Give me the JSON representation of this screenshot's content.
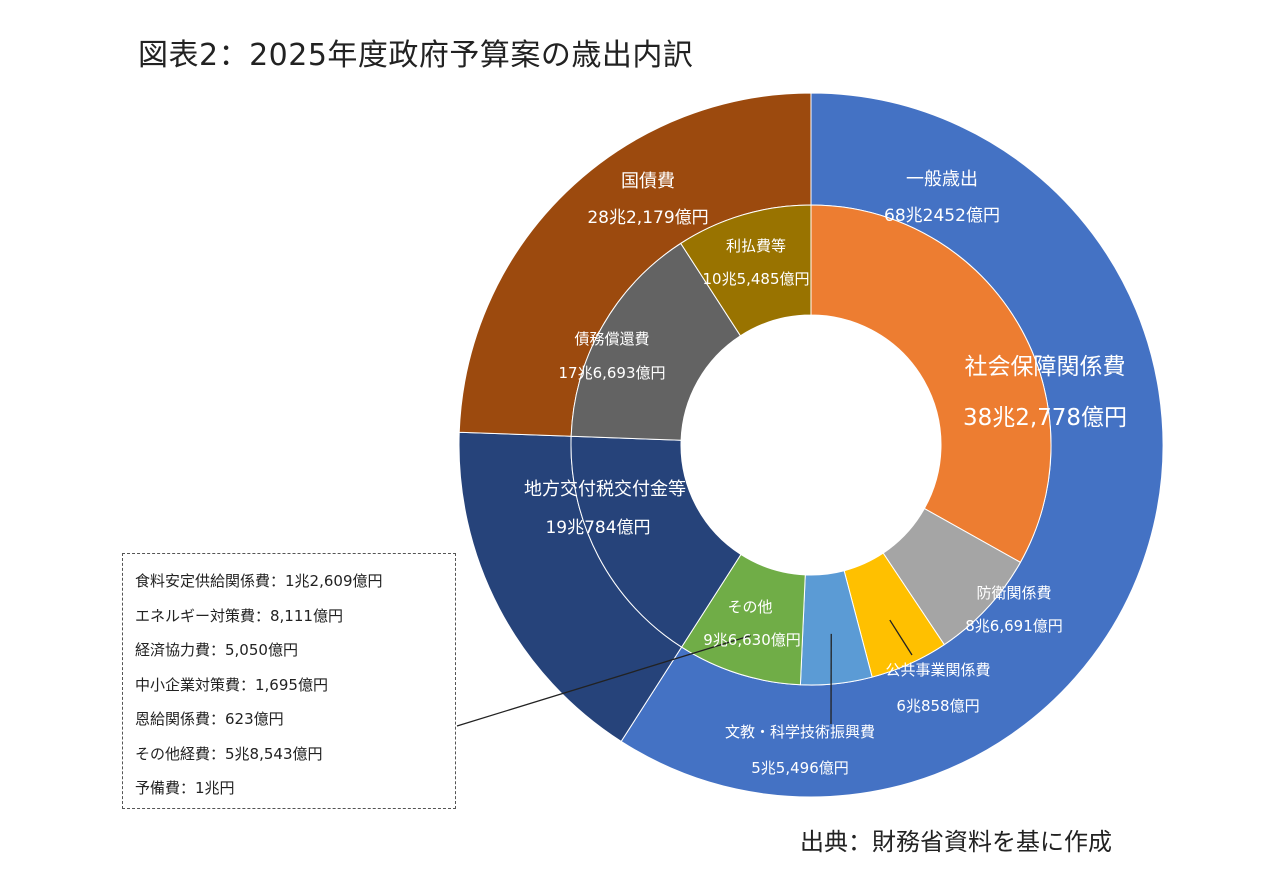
{
  "title": "図表2：2025年度政府予算案の歳出内訳",
  "source": "出典：財務省資料を基に作成",
  "colors": {
    "general": "#4472C4",
    "debt": "#9C4A0E",
    "local": "#26437A",
    "social": "#ED7D31",
    "defense": "#A5A5A5",
    "public_works": "#FFC000",
    "education": "#5B9BD5",
    "other": "#70AD47",
    "interest": "#997300",
    "redemption": "#636363"
  },
  "chart_data": {
    "type": "pie",
    "subtype": "doughnut",
    "unit": "億円",
    "outer_ring": [
      {
        "name": "一般歳出",
        "label": "68兆2452億円",
        "value": 682452,
        "color_key": "general"
      },
      {
        "name": "地方交付税交付金等",
        "label": "19兆784億円",
        "value": 190784,
        "color_key": "local"
      },
      {
        "name": "国債費",
        "label": "28兆2,179億円",
        "value": 282179,
        "color_key": "debt"
      }
    ],
    "inner_ring": [
      {
        "name": "社会保障関係費",
        "label": "38兆2,778億円",
        "value": 382778,
        "color_key": "social"
      },
      {
        "name": "防衛関係費",
        "label": "8兆6,691億円",
        "value": 86691,
        "color_key": "defense"
      },
      {
        "name": "公共事業関係費",
        "label": "6兆858億円",
        "value": 60858,
        "color_key": "public_works"
      },
      {
        "name": "文教・科学技術振興費",
        "label": "5兆5,496億円",
        "value": 55496,
        "color_key": "education"
      },
      {
        "name": "その他",
        "label": "9兆6,630億円",
        "value": 96630,
        "color_key": "other"
      },
      {
        "name": "地方交付税交付金等",
        "label": "",
        "value": 190784,
        "color_key": "local"
      },
      {
        "name": "債務償還費",
        "label": "17兆6,693億円",
        "value": 176693,
        "color_key": "redemption"
      },
      {
        "name": "利払費等",
        "label": "10兆5,485億円",
        "value": 105485,
        "color_key": "interest"
      }
    ],
    "other_breakdown": [
      "食料安定供給関係費：1兆2,609億円",
      "エネルギー対策費：8,111億円",
      "経済協力費：5,050億円",
      "中小企業対策費：1,695億円",
      "恩給関係費：623億円",
      "その他経費：5兆8,543億円",
      "予備費：1兆円"
    ]
  }
}
